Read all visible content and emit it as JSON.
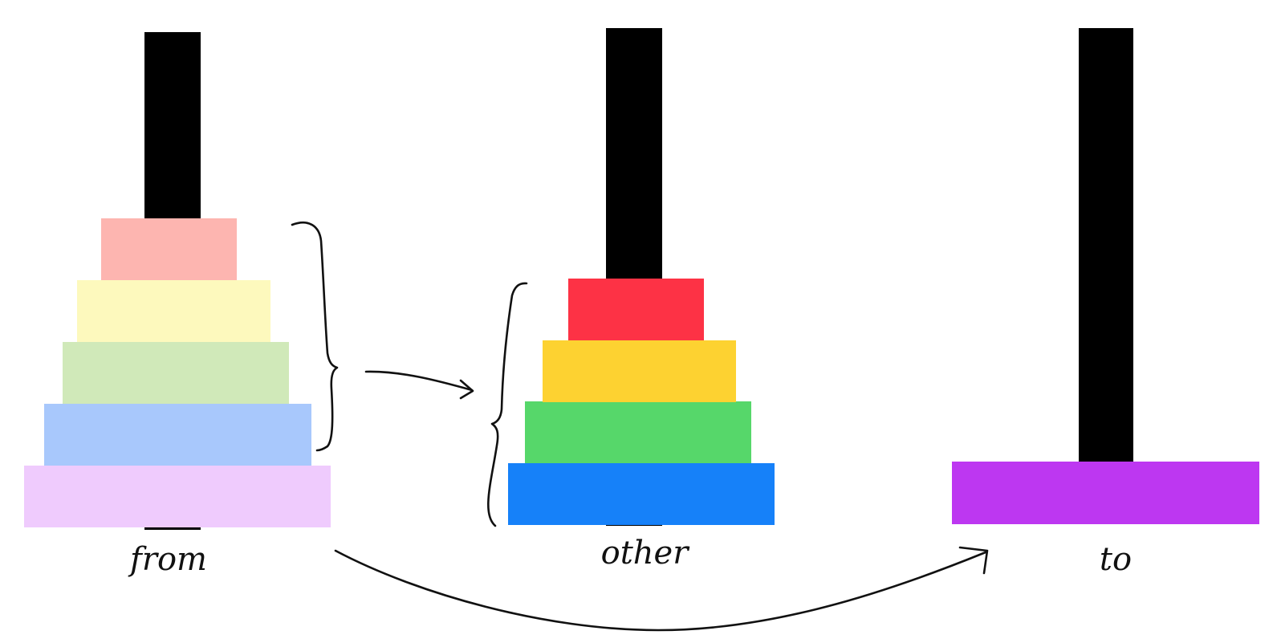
{
  "pegs": [
    {
      "id": "from",
      "label": "from",
      "disks": [
        {
          "size": 5,
          "color": "#efcbfd"
        },
        {
          "size": 4,
          "color": "#a8c8fc"
        },
        {
          "size": 3,
          "color": "#d0e9b9"
        },
        {
          "size": 2,
          "color": "#fdf9bd"
        },
        {
          "size": 1,
          "color": "#fdb5b0"
        }
      ]
    },
    {
      "id": "other",
      "label": "other",
      "disks": [
        {
          "size": 4,
          "color": "#1681f9"
        },
        {
          "size": 3,
          "color": "#56d76a"
        },
        {
          "size": 2,
          "color": "#fdd231"
        },
        {
          "size": 1,
          "color": "#fd3245"
        }
      ]
    },
    {
      "id": "to",
      "label": "to",
      "disks": [
        {
          "size": 5,
          "color": "#bd37f1"
        }
      ]
    }
  ],
  "colors": {
    "peg": "#000000",
    "ink": "#111111",
    "background": "#ffffff"
  }
}
